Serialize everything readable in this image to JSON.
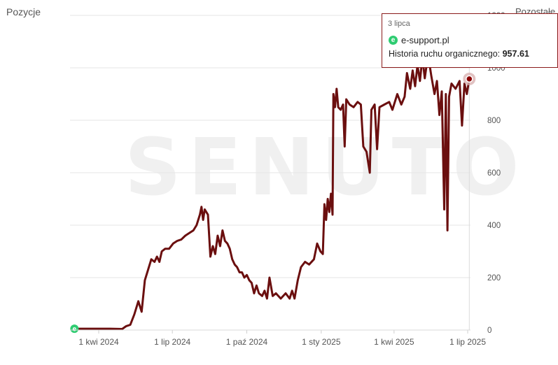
{
  "header": {
    "left_label": "Pozycje",
    "right_label": "Pozostałe"
  },
  "watermark": "SENUTO",
  "tooltip": {
    "date": "3 lipca",
    "site": "e-support.pl",
    "metric_label": "Historia ruchu organicznego:",
    "metric_value": "957.61",
    "icon": "e-support-logo-icon"
  },
  "colors": {
    "line": "#6b0f0f",
    "grid": "#e6e6e6",
    "tooltip_border": "#8a1a1a",
    "start_marker": "#2ecc71"
  },
  "chart_data": {
    "type": "line",
    "title": "",
    "xlabel": "",
    "ylabel": "",
    "ylim": [
      0,
      1200
    ],
    "yticks": [
      "0",
      "200",
      "400",
      "600",
      "800",
      "1000",
      "1200"
    ],
    "xticks": [
      {
        "label": "1 kwi 2024",
        "date": "2024-04-01"
      },
      {
        "label": "1 lip 2024",
        "date": "2024-07-01"
      },
      {
        "label": "1 paź 2024",
        "date": "2024-10-01"
      },
      {
        "label": "1 sty 2025",
        "date": "2025-01-01"
      },
      {
        "label": "1 kwi 2025",
        "date": "2025-04-01"
      },
      {
        "label": "1 lip 2025",
        "date": "2025-07-01"
      }
    ],
    "grid": true,
    "series": [
      {
        "name": "e-support.pl",
        "points": [
          [
            "2024-03-02",
            5
          ],
          [
            "2024-04-15",
            5
          ],
          [
            "2024-04-30",
            4
          ],
          [
            "2024-05-05",
            15
          ],
          [
            "2024-05-10",
            20
          ],
          [
            "2024-05-15",
            60
          ],
          [
            "2024-05-20",
            110
          ],
          [
            "2024-05-24",
            70
          ],
          [
            "2024-05-28",
            190
          ],
          [
            "2024-06-01",
            230
          ],
          [
            "2024-06-05",
            270
          ],
          [
            "2024-06-09",
            260
          ],
          [
            "2024-06-12",
            280
          ],
          [
            "2024-06-15",
            260
          ],
          [
            "2024-06-18",
            300
          ],
          [
            "2024-06-22",
            310
          ],
          [
            "2024-06-27",
            310
          ],
          [
            "2024-07-02",
            330
          ],
          [
            "2024-07-07",
            340
          ],
          [
            "2024-07-12",
            345
          ],
          [
            "2024-07-17",
            360
          ],
          [
            "2024-07-22",
            370
          ],
          [
            "2024-07-27",
            380
          ],
          [
            "2024-07-31",
            400
          ],
          [
            "2024-08-04",
            440
          ],
          [
            "2024-08-06",
            470
          ],
          [
            "2024-08-08",
            420
          ],
          [
            "2024-08-10",
            460
          ],
          [
            "2024-08-12",
            450
          ],
          [
            "2024-08-14",
            440
          ],
          [
            "2024-08-17",
            280
          ],
          [
            "2024-08-20",
            320
          ],
          [
            "2024-08-23",
            290
          ],
          [
            "2024-08-26",
            360
          ],
          [
            "2024-08-29",
            320
          ],
          [
            "2024-09-01",
            380
          ],
          [
            "2024-09-04",
            340
          ],
          [
            "2024-09-07",
            330
          ],
          [
            "2024-09-10",
            310
          ],
          [
            "2024-09-13",
            270
          ],
          [
            "2024-09-16",
            250
          ],
          [
            "2024-09-19",
            240
          ],
          [
            "2024-09-22",
            220
          ],
          [
            "2024-09-25",
            220
          ],
          [
            "2024-09-28",
            200
          ],
          [
            "2024-10-01",
            210
          ],
          [
            "2024-10-04",
            190
          ],
          [
            "2024-10-07",
            180
          ],
          [
            "2024-10-10",
            140
          ],
          [
            "2024-10-13",
            170
          ],
          [
            "2024-10-16",
            140
          ],
          [
            "2024-10-20",
            130
          ],
          [
            "2024-10-23",
            150
          ],
          [
            "2024-10-26",
            120
          ],
          [
            "2024-10-29",
            200
          ],
          [
            "2024-11-02",
            130
          ],
          [
            "2024-11-06",
            140
          ],
          [
            "2024-11-12",
            120
          ],
          [
            "2024-11-18",
            140
          ],
          [
            "2024-11-23",
            120
          ],
          [
            "2024-11-26",
            150
          ],
          [
            "2024-11-29",
            120
          ],
          [
            "2024-12-03",
            190
          ],
          [
            "2024-12-07",
            240
          ],
          [
            "2024-12-12",
            260
          ],
          [
            "2024-12-17",
            250
          ],
          [
            "2024-12-23",
            270
          ],
          [
            "2024-12-27",
            330
          ],
          [
            "2024-12-31",
            300
          ],
          [
            "2025-01-03",
            290
          ],
          [
            "2025-01-05",
            480
          ],
          [
            "2025-01-07",
            420
          ],
          [
            "2025-01-09",
            500
          ],
          [
            "2025-01-11",
            450
          ],
          [
            "2025-01-13",
            520
          ],
          [
            "2025-01-15",
            440
          ],
          [
            "2025-01-16",
            900
          ],
          [
            "2025-01-18",
            850
          ],
          [
            "2025-01-20",
            920
          ],
          [
            "2025-01-22",
            850
          ],
          [
            "2025-01-25",
            840
          ],
          [
            "2025-01-28",
            860
          ],
          [
            "2025-01-30",
            700
          ],
          [
            "2025-02-01",
            880
          ],
          [
            "2025-02-05",
            860
          ],
          [
            "2025-02-10",
            850
          ],
          [
            "2025-02-15",
            870
          ],
          [
            "2025-02-19",
            860
          ],
          [
            "2025-02-22",
            700
          ],
          [
            "2025-02-26",
            680
          ],
          [
            "2025-03-02",
            600
          ],
          [
            "2025-03-04",
            840
          ],
          [
            "2025-03-08",
            860
          ],
          [
            "2025-03-11",
            690
          ],
          [
            "2025-03-14",
            850
          ],
          [
            "2025-03-20",
            860
          ],
          [
            "2025-03-26",
            870
          ],
          [
            "2025-03-30",
            840
          ],
          [
            "2025-04-05",
            900
          ],
          [
            "2025-04-10",
            860
          ],
          [
            "2025-04-14",
            890
          ],
          [
            "2025-04-17",
            980
          ],
          [
            "2025-04-21",
            920
          ],
          [
            "2025-04-24",
            990
          ],
          [
            "2025-04-27",
            930
          ],
          [
            "2025-04-30",
            1010
          ],
          [
            "2025-05-03",
            950
          ],
          [
            "2025-05-06",
            1040
          ],
          [
            "2025-05-09",
            960
          ],
          [
            "2025-05-13",
            1050
          ],
          [
            "2025-05-17",
            970
          ],
          [
            "2025-05-21",
            900
          ],
          [
            "2025-05-24",
            950
          ],
          [
            "2025-05-27",
            820
          ],
          [
            "2025-05-30",
            910
          ],
          [
            "2025-06-02",
            460
          ],
          [
            "2025-06-04",
            900
          ],
          [
            "2025-06-06",
            380
          ],
          [
            "2025-06-08",
            890
          ],
          [
            "2025-06-11",
            940
          ],
          [
            "2025-06-16",
            920
          ],
          [
            "2025-06-21",
            950
          ],
          [
            "2025-06-24",
            780
          ],
          [
            "2025-06-27",
            940
          ],
          [
            "2025-06-30",
            900
          ],
          [
            "2025-07-03",
            957.61
          ]
        ]
      }
    ]
  }
}
